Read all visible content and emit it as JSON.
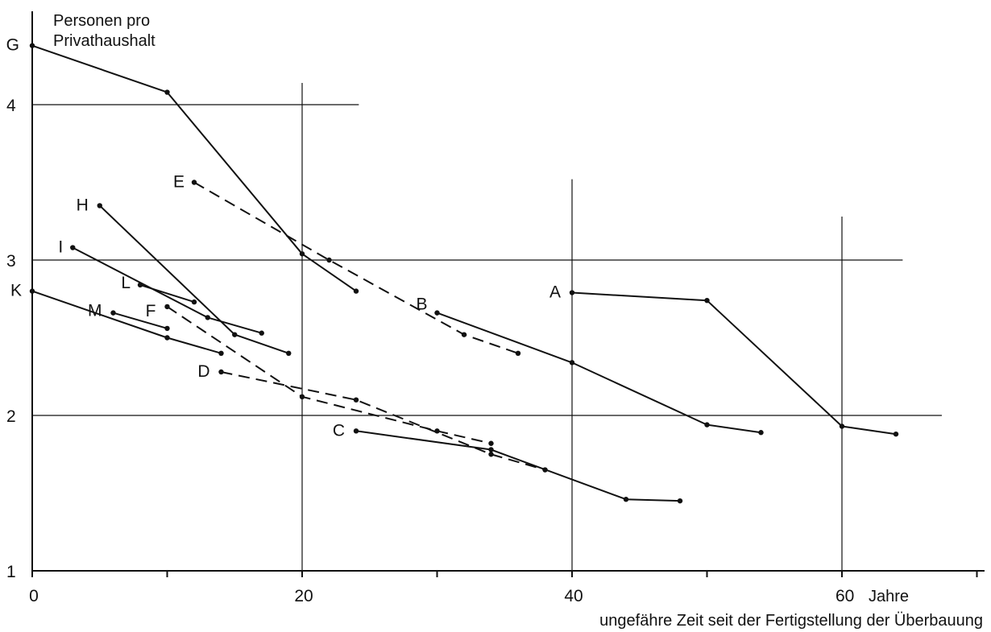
{
  "chart_data": {
    "type": "line",
    "ylabel_lines": [
      "Personen pro",
      "Privathaushalt"
    ],
    "xlabel": "ungefähre Zeit seit der Fertigstellung der Überbauung",
    "x_unit": "Jahre",
    "x_ticks": [
      0,
      20,
      40,
      60
    ],
    "y_ticks": [
      1,
      2,
      3,
      4
    ],
    "xlim": [
      0,
      70
    ],
    "ylim": [
      1,
      4.4
    ],
    "series": [
      {
        "name": "G",
        "style": "solid",
        "x": [
          0,
          10,
          20,
          24
        ],
        "y": [
          4.38,
          4.08,
          3.04,
          2.8
        ]
      },
      {
        "name": "E",
        "style": "dashed",
        "x": [
          12,
          22,
          32,
          36
        ],
        "y": [
          3.5,
          3.0,
          2.52,
          2.4
        ]
      },
      {
        "name": "H",
        "style": "solid",
        "x": [
          5,
          15,
          19
        ],
        "y": [
          3.35,
          2.52,
          2.4
        ]
      },
      {
        "name": "I",
        "style": "solid",
        "x": [
          3,
          13,
          17
        ],
        "y": [
          3.08,
          2.63,
          2.53
        ]
      },
      {
        "name": "L",
        "style": "solid",
        "x": [
          8,
          12
        ],
        "y": [
          2.84,
          2.73
        ]
      },
      {
        "name": "K",
        "style": "solid",
        "x": [
          0,
          10,
          14
        ],
        "y": [
          2.8,
          2.5,
          2.4
        ]
      },
      {
        "name": "M",
        "style": "solid",
        "x": [
          6,
          10
        ],
        "y": [
          2.66,
          2.56
        ]
      },
      {
        "name": "F",
        "style": "dashed",
        "x": [
          10,
          20,
          30,
          34
        ],
        "y": [
          2.7,
          2.12,
          1.9,
          1.82
        ]
      },
      {
        "name": "D",
        "style": "dashed",
        "x": [
          14,
          24,
          34,
          38
        ],
        "y": [
          2.28,
          2.1,
          1.75,
          1.65
        ]
      },
      {
        "name": "C",
        "style": "solid",
        "x": [
          24,
          34,
          44,
          48
        ],
        "y": [
          1.9,
          1.78,
          1.46,
          1.45
        ]
      },
      {
        "name": "B",
        "style": "solid",
        "x": [
          30,
          40,
          50,
          54
        ],
        "y": [
          2.66,
          2.34,
          1.94,
          1.89
        ]
      },
      {
        "name": "A",
        "style": "solid",
        "x": [
          40,
          50,
          60,
          64
        ],
        "y": [
          2.79,
          2.74,
          1.93,
          1.88
        ]
      }
    ]
  }
}
